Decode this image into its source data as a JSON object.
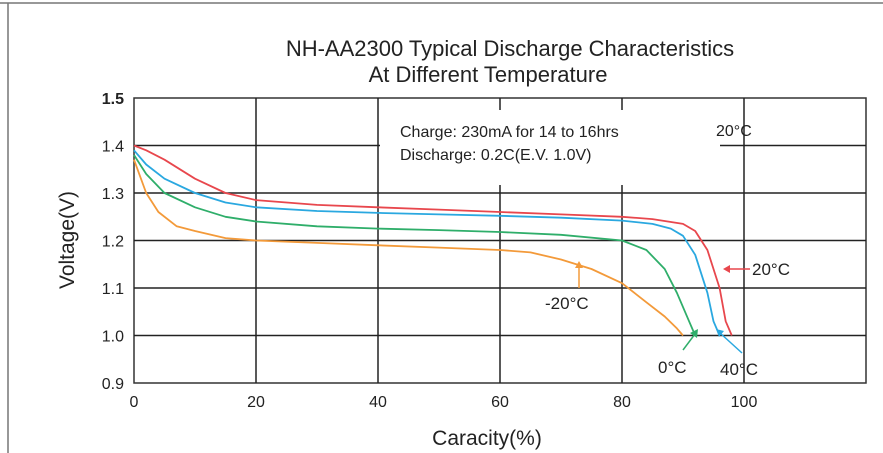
{
  "chart_data": {
    "type": "line",
    "title": "NH-AA2300 Typical Discharge Characteristics",
    "subtitle": "At Different Temperature",
    "xlabel": "Caracity(%)",
    "ylabel": "Voltage(V)",
    "xlim": [
      0,
      120
    ],
    "ylim": [
      0.9,
      1.5
    ],
    "x_ticks": [
      "0",
      "20",
      "40",
      "60",
      "80",
      "100"
    ],
    "y_ticks": [
      "0.9",
      "1.0",
      "1.1",
      "1.2",
      "1.3",
      "1.4",
      "1.5"
    ],
    "grid": true,
    "annotations": {
      "charge": "Charge: 230mA for 14 to 16hrs",
      "charge_temp": "20°C",
      "discharge": "Discharge: 0.2C(E.V. 1.0V)"
    },
    "series": [
      {
        "name": "20°C",
        "color": "#e8474d",
        "x": [
          0,
          2,
          5,
          10,
          15,
          20,
          30,
          40,
          50,
          60,
          70,
          80,
          85,
          90,
          92,
          94,
          96,
          97,
          98
        ],
        "y": [
          1.4,
          1.39,
          1.37,
          1.33,
          1.3,
          1.285,
          1.275,
          1.27,
          1.265,
          1.26,
          1.255,
          1.25,
          1.245,
          1.235,
          1.22,
          1.18,
          1.1,
          1.03,
          1.0
        ]
      },
      {
        "name": "40°C",
        "color": "#2aa8e0",
        "x": [
          0,
          2,
          5,
          10,
          15,
          20,
          30,
          40,
          50,
          60,
          70,
          80,
          85,
          88,
          90,
          92,
          94,
          95,
          96
        ],
        "y": [
          1.39,
          1.36,
          1.33,
          1.3,
          1.28,
          1.27,
          1.262,
          1.258,
          1.255,
          1.252,
          1.248,
          1.242,
          1.235,
          1.225,
          1.21,
          1.17,
          1.09,
          1.03,
          1.0
        ]
      },
      {
        "name": "0°C",
        "color": "#2fae6a",
        "x": [
          0,
          2,
          5,
          10,
          15,
          20,
          30,
          40,
          50,
          60,
          70,
          80,
          84,
          87,
          89,
          91,
          92
        ],
        "y": [
          1.38,
          1.34,
          1.3,
          1.27,
          1.25,
          1.24,
          1.23,
          1.225,
          1.222,
          1.218,
          1.212,
          1.2,
          1.18,
          1.14,
          1.09,
          1.03,
          1.0
        ]
      },
      {
        "name": "-20°C",
        "color": "#f39a3a",
        "x": [
          0,
          2,
          4,
          7,
          10,
          15,
          20,
          30,
          40,
          50,
          60,
          65,
          70,
          75,
          80,
          84,
          87,
          89,
          90
        ],
        "y": [
          1.37,
          1.3,
          1.26,
          1.23,
          1.22,
          1.205,
          1.2,
          1.195,
          1.19,
          1.185,
          1.18,
          1.175,
          1.16,
          1.14,
          1.11,
          1.07,
          1.04,
          1.015,
          1.0
        ]
      }
    ]
  }
}
